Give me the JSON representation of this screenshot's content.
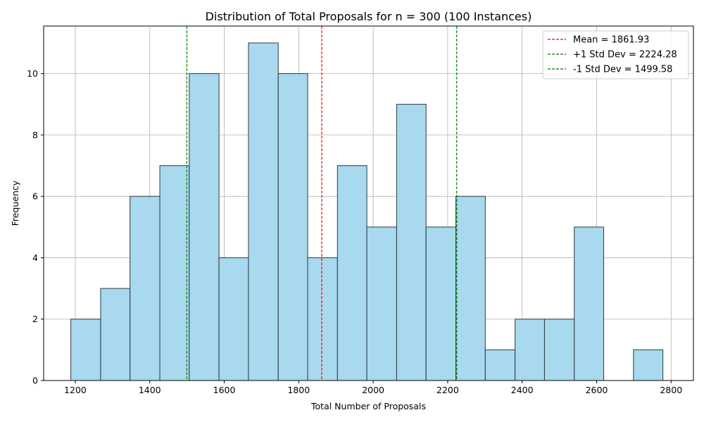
{
  "chart_data": {
    "type": "bar",
    "title": "Distribution of Total Proposals for n = 300 (100 Instances)",
    "xlabel": "Total Number of Proposals",
    "ylabel": "Frequency",
    "xlim": [
      1115,
      2860
    ],
    "ylim": [
      0,
      11.55
    ],
    "x_ticks": [
      1200,
      1400,
      1600,
      1800,
      2000,
      2200,
      2400,
      2600,
      2800
    ],
    "y_ticks": [
      0,
      2,
      4,
      6,
      8,
      10
    ],
    "grid": true,
    "bin_edges": [
      1188,
      1268,
      1347,
      1427,
      1506,
      1586,
      1665,
      1745,
      1824,
      1904,
      1983,
      2063,
      2142,
      2222,
      2301,
      2381,
      2460,
      2540,
      2619,
      2699,
      2778
    ],
    "counts": [
      2,
      3,
      6,
      7,
      10,
      4,
      11,
      10,
      4,
      7,
      5,
      9,
      5,
      6,
      1,
      2,
      2,
      5,
      0,
      1
    ],
    "bar_color": "#a8d9ee",
    "bar_edge_color": "#2b3a40",
    "reference_lines": [
      {
        "label": "Mean = 1861.93",
        "value": 1861.93,
        "color": "#ff0000"
      },
      {
        "label": "+1 Std Dev = 2224.28",
        "value": 2224.28,
        "color": "#008000"
      },
      {
        "label": "-1 Std Dev = 1499.58",
        "value": 1499.58,
        "color": "#008000"
      }
    ],
    "legend_position": "top-right"
  }
}
